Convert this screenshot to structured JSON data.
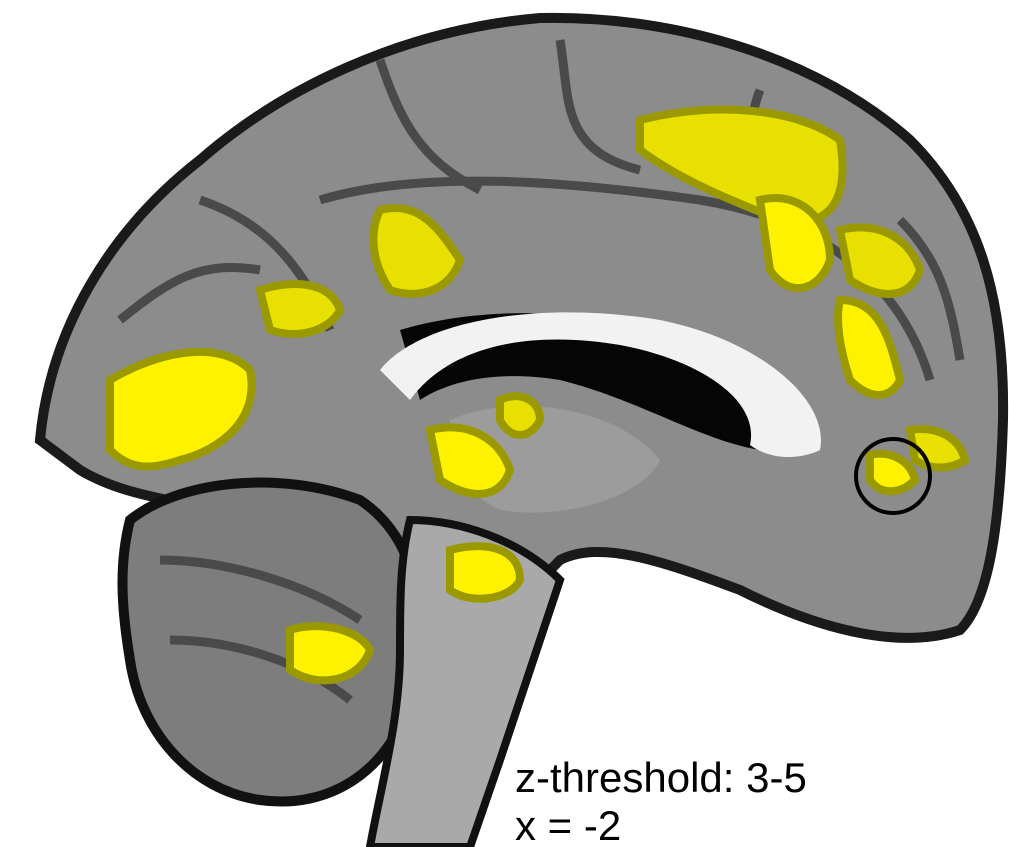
{
  "annotations": {
    "threshold": "z-threshold: 3-5",
    "slice": "x = -2"
  }
}
